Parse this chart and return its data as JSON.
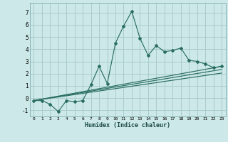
{
  "xlabel": "Humidex (Indice chaleur)",
  "ylabel": "",
  "background_color": "#cce8e8",
  "grid_color": "#aacccc",
  "line_color": "#2a6e62",
  "xlim": [
    -0.5,
    23.5
  ],
  "ylim": [
    -1.5,
    7.8
  ],
  "xticks": [
    0,
    1,
    2,
    3,
    4,
    5,
    6,
    7,
    8,
    9,
    10,
    11,
    12,
    13,
    14,
    15,
    16,
    17,
    18,
    19,
    20,
    21,
    22,
    23
  ],
  "yticks": [
    -1,
    0,
    1,
    2,
    3,
    4,
    5,
    6,
    7
  ],
  "series1_x": [
    0,
    1,
    2,
    3,
    4,
    5,
    6,
    7,
    8,
    9,
    10,
    11,
    12,
    13,
    14,
    15,
    16,
    17,
    18,
    19,
    20,
    21,
    22,
    23
  ],
  "series1_y": [
    -0.2,
    -0.2,
    -0.5,
    -1.1,
    -0.2,
    -0.3,
    -0.2,
    1.1,
    2.6,
    1.2,
    4.5,
    5.9,
    7.1,
    4.9,
    3.5,
    4.3,
    3.8,
    3.9,
    4.1,
    3.1,
    3.0,
    2.8,
    2.5,
    2.6
  ],
  "series2_x": [
    0,
    23
  ],
  "series2_y": [
    -0.2,
    2.6
  ],
  "series3_x": [
    0,
    23
  ],
  "series3_y": [
    -0.2,
    2.35
  ],
  "series4_x": [
    0,
    23
  ],
  "series4_y": [
    -0.2,
    2.05
  ]
}
